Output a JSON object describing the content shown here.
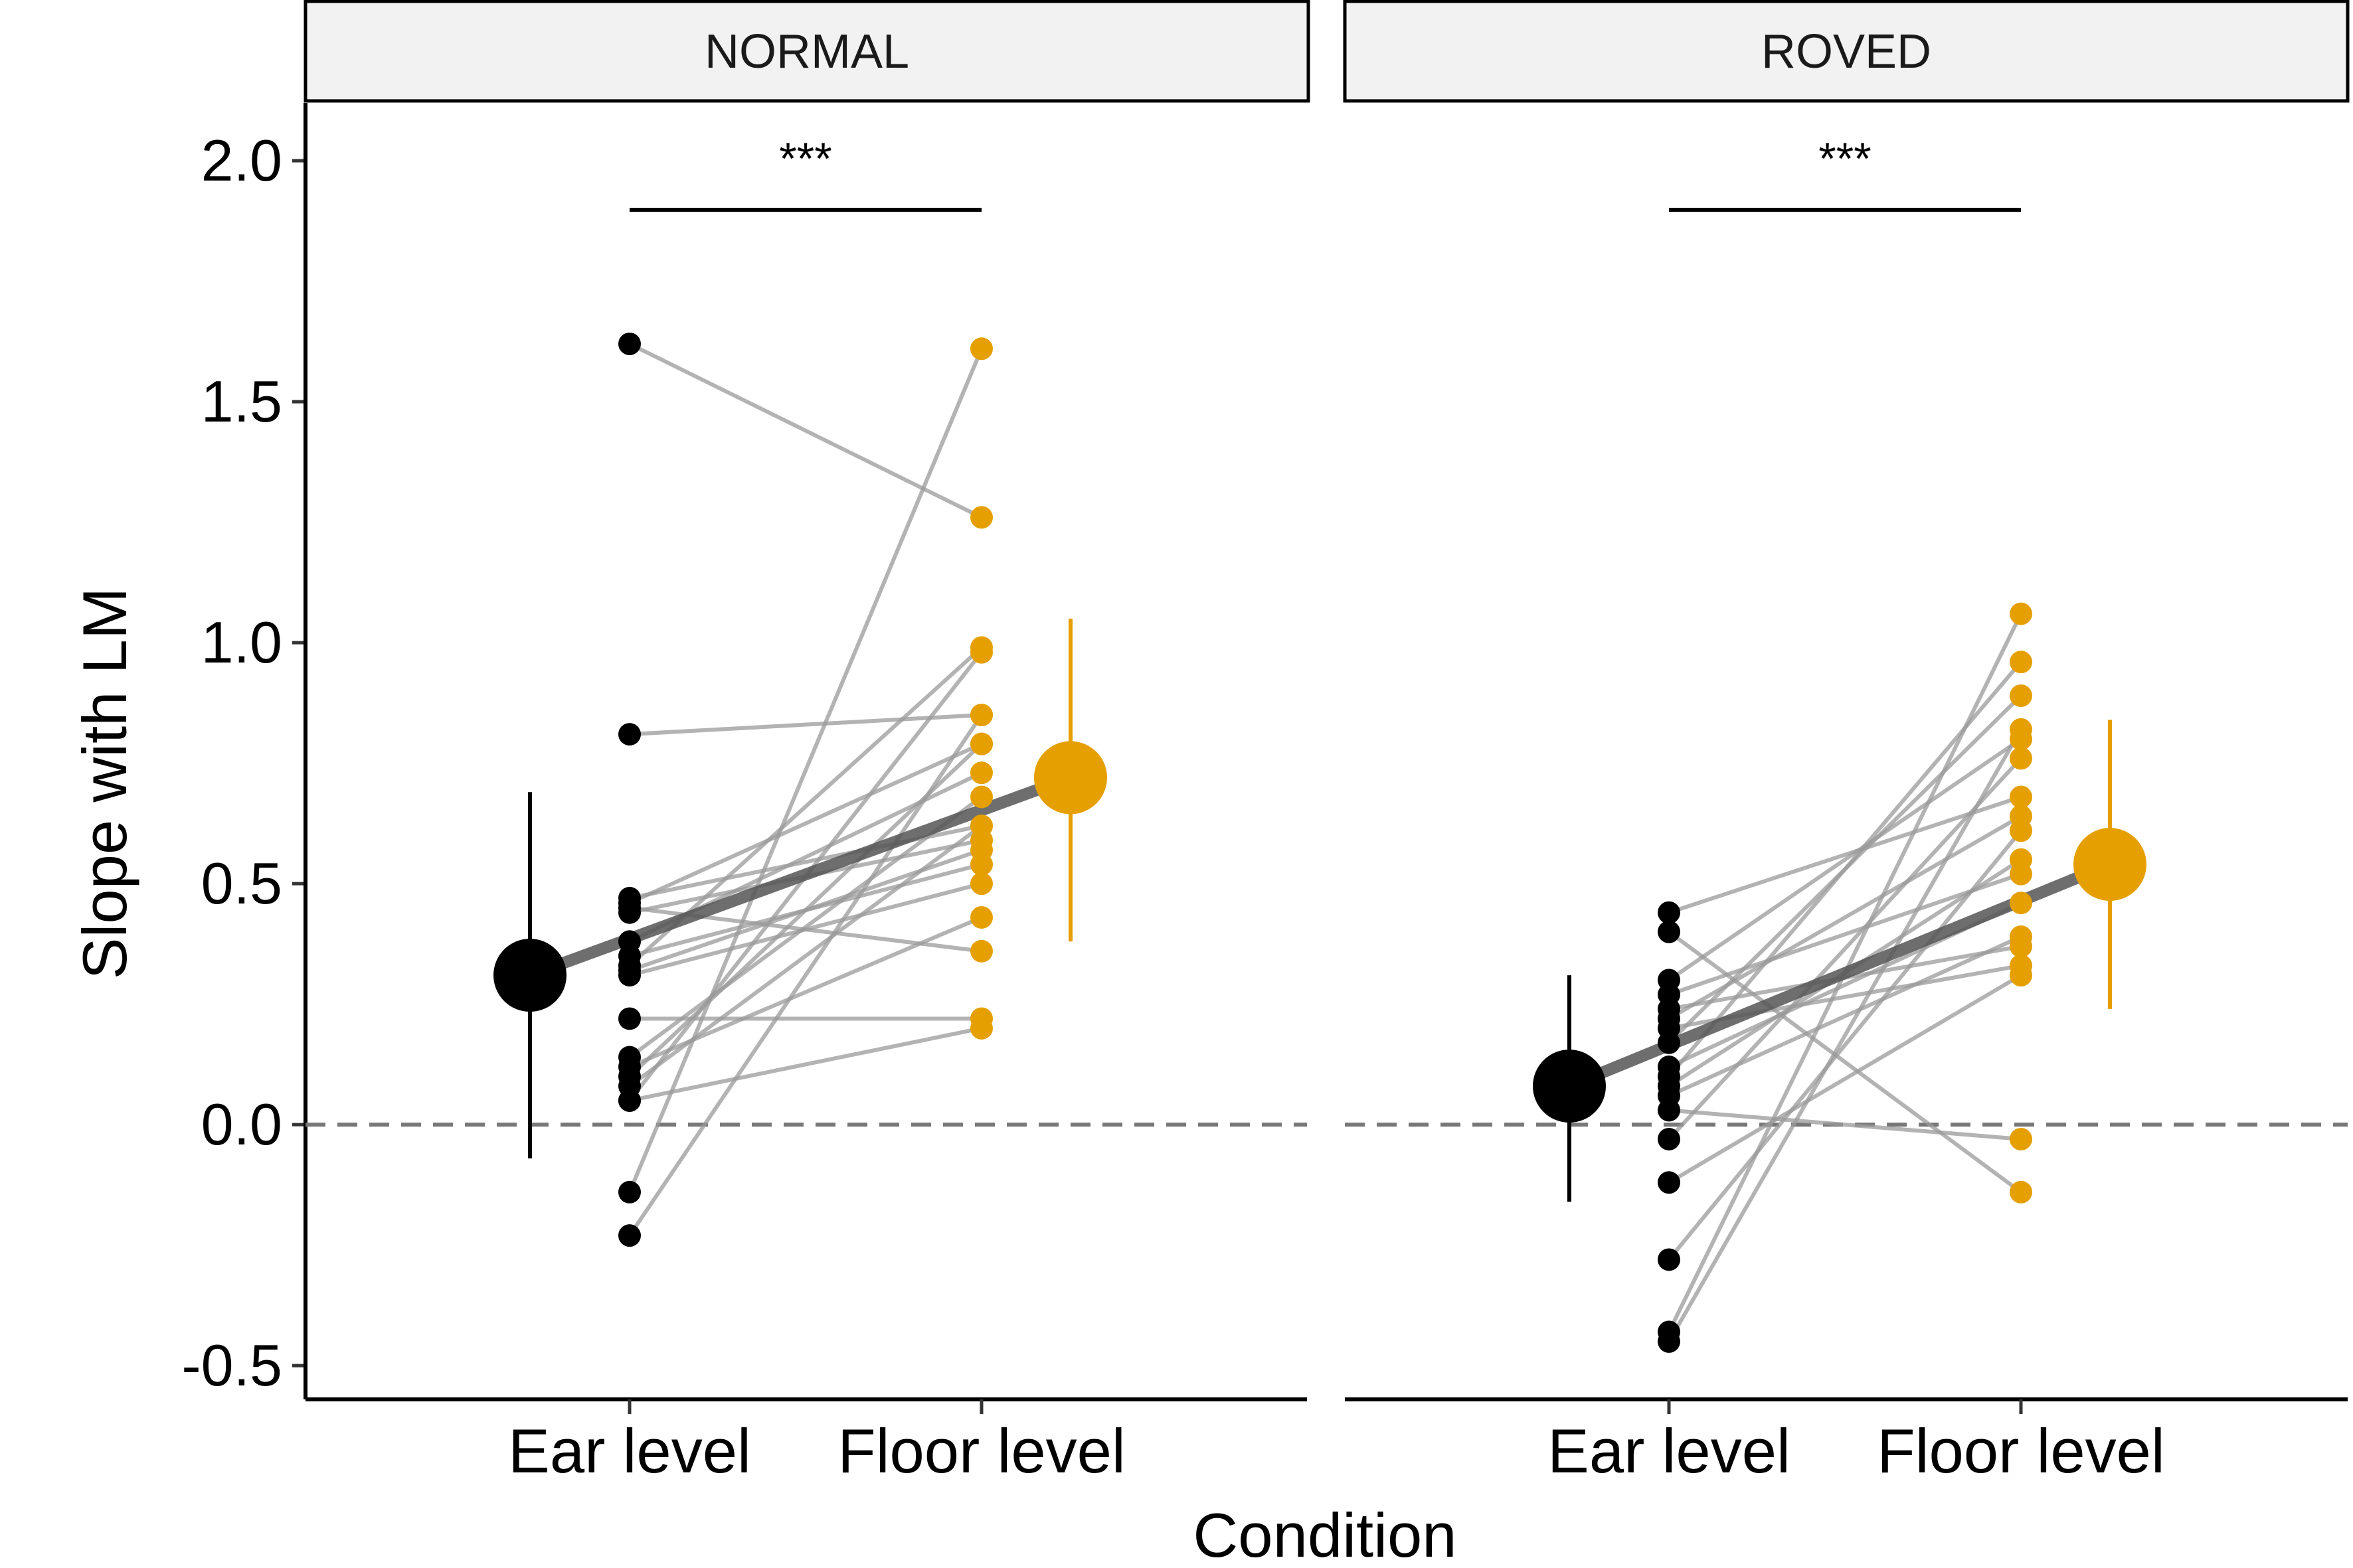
{
  "chart_data": {
    "type": "scatter",
    "xlabel": "Condition",
    "ylabel": "Slope with LM",
    "ylim": [
      -0.57,
      2.12
    ],
    "yticks": [
      "-0.5",
      "0.0",
      "0.5",
      "1.0",
      "1.5",
      "2.0"
    ],
    "categories": [
      "Ear level",
      "Floor level"
    ],
    "reference_line": 0,
    "colors": {
      "Ear level": "#000000",
      "Floor level": "#E69F00",
      "pair_line": "#999999",
      "mean_line": "#555555"
    },
    "panels": [
      {
        "name": "NORMAL",
        "significance": "***",
        "pairs": [
          [
            1.62,
            1.26
          ],
          [
            0.81,
            0.85
          ],
          [
            0.47,
            0.62
          ],
          [
            0.46,
            0.79
          ],
          [
            0.45,
            0.36
          ],
          [
            0.44,
            0.59
          ],
          [
            0.38,
            0.73
          ],
          [
            0.35,
            0.54
          ],
          [
            0.33,
            0.99
          ],
          [
            0.32,
            0.57
          ],
          [
            0.31,
            0.5
          ],
          [
            0.22,
            0.22
          ],
          [
            0.14,
            0.68
          ],
          [
            0.12,
            0.43
          ],
          [
            0.1,
            0.79
          ],
          [
            0.08,
            0.62
          ],
          [
            0.05,
            0.2
          ],
          [
            0.05,
            0.98
          ],
          [
            -0.14,
            1.61
          ],
          [
            -0.23,
            0.85
          ]
        ],
        "ear_mean": 0.31,
        "ear_ci": [
          -0.07,
          0.69
        ],
        "floor_mean": 0.72,
        "floor_ci": [
          0.38,
          1.05
        ]
      },
      {
        "name": "ROVED",
        "significance": "***",
        "pairs": [
          [
            0.44,
            0.68
          ],
          [
            0.4,
            -0.14
          ],
          [
            0.3,
            0.8
          ],
          [
            0.27,
            0.52
          ],
          [
            0.24,
            0.37
          ],
          [
            0.22,
            0.64
          ],
          [
            0.2,
            0.33
          ],
          [
            0.17,
            0.89
          ],
          [
            0.12,
            0.46
          ],
          [
            0.1,
            0.96
          ],
          [
            0.08,
            0.55
          ],
          [
            0.06,
            0.39
          ],
          [
            0.03,
            -0.03
          ],
          [
            -0.03,
            0.76
          ],
          [
            -0.12,
            0.31
          ],
          [
            -0.28,
            0.61
          ],
          [
            -0.43,
            1.06
          ],
          [
            -0.45,
            0.82
          ]
        ],
        "ear_mean": 0.08,
        "ear_ci": [
          -0.16,
          0.31
        ],
        "floor_mean": 0.54,
        "floor_ci": [
          0.24,
          0.84
        ]
      }
    ]
  }
}
